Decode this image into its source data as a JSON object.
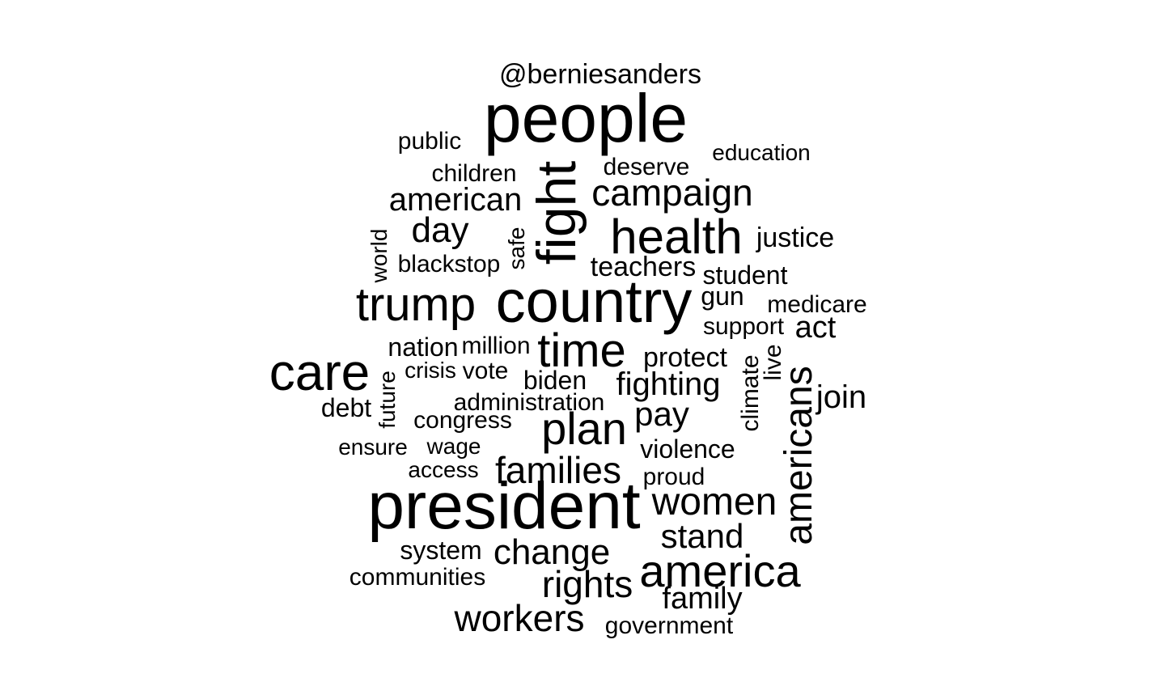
{
  "words": [
    {
      "text": "@berniesanders"
    },
    {
      "text": "people"
    },
    {
      "text": "public"
    },
    {
      "text": "education"
    },
    {
      "text": "deserve"
    },
    {
      "text": "children"
    },
    {
      "text": "fight"
    },
    {
      "text": "campaign"
    },
    {
      "text": "american"
    },
    {
      "text": "day"
    },
    {
      "text": "health"
    },
    {
      "text": "justice"
    },
    {
      "text": "world"
    },
    {
      "text": "safe"
    },
    {
      "text": "blackstop"
    },
    {
      "text": "teachers"
    },
    {
      "text": "student"
    },
    {
      "text": "trump"
    },
    {
      "text": "country"
    },
    {
      "text": "gun"
    },
    {
      "text": "medicare"
    },
    {
      "text": "support"
    },
    {
      "text": "act"
    },
    {
      "text": "nation"
    },
    {
      "text": "million"
    },
    {
      "text": "time"
    },
    {
      "text": "protect"
    },
    {
      "text": "care"
    },
    {
      "text": "crisis"
    },
    {
      "text": "vote"
    },
    {
      "text": "biden"
    },
    {
      "text": "fighting"
    },
    {
      "text": "climate"
    },
    {
      "text": "live"
    },
    {
      "text": "americans"
    },
    {
      "text": "join"
    },
    {
      "text": "debt"
    },
    {
      "text": "future"
    },
    {
      "text": "administration"
    },
    {
      "text": "congress"
    },
    {
      "text": "plan"
    },
    {
      "text": "pay"
    },
    {
      "text": "ensure"
    },
    {
      "text": "wage"
    },
    {
      "text": "violence"
    },
    {
      "text": "access"
    },
    {
      "text": "families"
    },
    {
      "text": "proud"
    },
    {
      "text": "president"
    },
    {
      "text": "women"
    },
    {
      "text": "stand"
    },
    {
      "text": "system"
    },
    {
      "text": "change"
    },
    {
      "text": "communities"
    },
    {
      "text": "america"
    },
    {
      "text": "rights"
    },
    {
      "text": "family"
    },
    {
      "text": "workers"
    },
    {
      "text": "government"
    }
  ]
}
